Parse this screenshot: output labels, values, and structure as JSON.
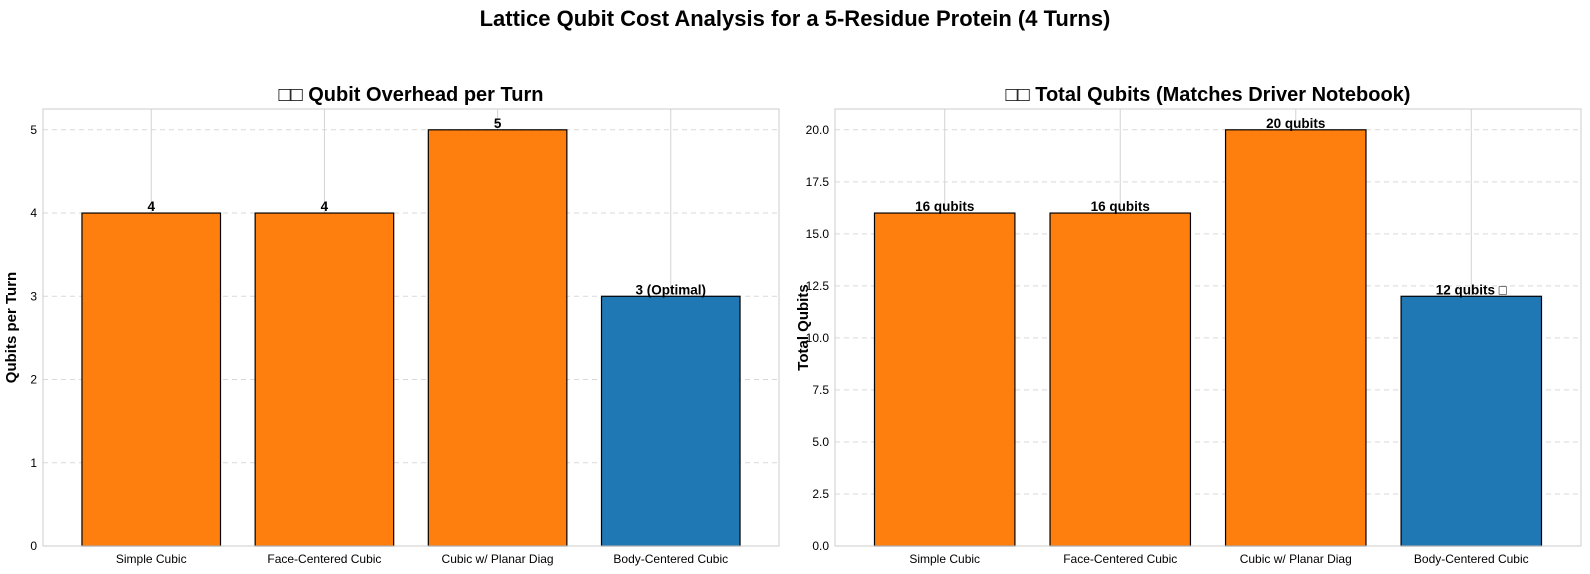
{
  "figure": {
    "title": "Lattice Qubit Cost Analysis for a 5-Residue Protein (4 Turns)"
  },
  "colors": {
    "standard": "#ff7f0e",
    "optimal": "#1f77b4"
  },
  "chart_data": [
    {
      "type": "bar",
      "title": "□□ Qubit Overhead per Turn",
      "xlabel": "",
      "ylabel": "Qubits per Turn",
      "categories": [
        "Simple Cubic",
        "Face-Centered Cubic",
        "Cubic w/ Planar Diag",
        "Body-Centered Cubic"
      ],
      "values": [
        4,
        4,
        5,
        3
      ],
      "bar_colors": [
        "#ff7f0e",
        "#ff7f0e",
        "#ff7f0e",
        "#1f77b4"
      ],
      "data_labels": [
        "4",
        "4",
        "5",
        "3 (Optimal)"
      ],
      "ylim": [
        0,
        5.25
      ],
      "yticks": [
        0,
        1,
        2,
        3,
        4,
        5
      ],
      "ytick_labels": [
        "0",
        "1",
        "2",
        "3",
        "4",
        "5"
      ],
      "grid": true
    },
    {
      "type": "bar",
      "title": "□□ Total Qubits (Matches Driver Notebook)",
      "xlabel": "",
      "ylabel": "Total Qubits",
      "categories": [
        "Simple Cubic",
        "Face-Centered Cubic",
        "Cubic w/ Planar Diag",
        "Body-Centered Cubic"
      ],
      "values": [
        16,
        16,
        20,
        12
      ],
      "bar_colors": [
        "#ff7f0e",
        "#ff7f0e",
        "#ff7f0e",
        "#1f77b4"
      ],
      "data_labels": [
        "16 qubits",
        "16 qubits",
        "20 qubits",
        "12 qubits □"
      ],
      "ylim": [
        0,
        21
      ],
      "yticks": [
        0,
        2.5,
        5,
        7.5,
        10,
        12.5,
        15,
        17.5,
        20
      ],
      "ytick_labels": [
        "0.0",
        "2.5",
        "5.0",
        "7.5",
        "10.0",
        "12.5",
        "15.0",
        "17.5",
        "20.0"
      ],
      "grid": true
    }
  ]
}
